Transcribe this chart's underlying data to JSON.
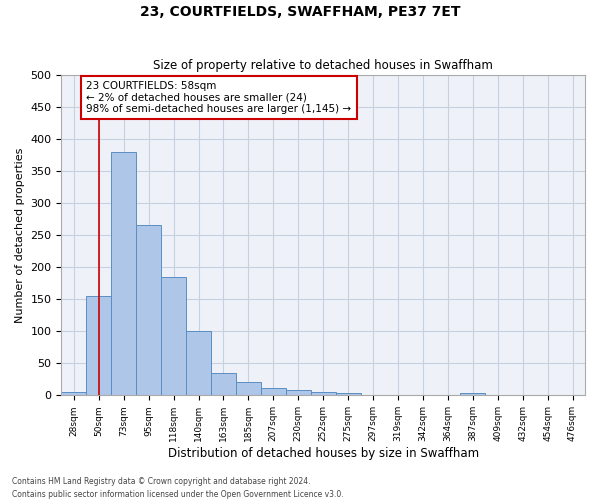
{
  "title": "23, COURTFIELDS, SWAFFHAM, PE37 7ET",
  "subtitle": "Size of property relative to detached houses in Swaffham",
  "xlabel": "Distribution of detached houses by size in Swaffham",
  "ylabel": "Number of detached properties",
  "bar_labels": [
    "28sqm",
    "50sqm",
    "73sqm",
    "95sqm",
    "118sqm",
    "140sqm",
    "163sqm",
    "185sqm",
    "207sqm",
    "230sqm",
    "252sqm",
    "275sqm",
    "297sqm",
    "319sqm",
    "342sqm",
    "364sqm",
    "387sqm",
    "409sqm",
    "432sqm",
    "454sqm",
    "476sqm"
  ],
  "bar_values": [
    5,
    155,
    380,
    265,
    185,
    101,
    35,
    21,
    12,
    8,
    5,
    3,
    1,
    0,
    0,
    0,
    3,
    0,
    0,
    0,
    0
  ],
  "bar_color": "#aec6e8",
  "bar_edge_color": "#5a8fc4",
  "annotation_text": "23 COURTFIELDS: 58sqm\n← 2% of detached houses are smaller (24)\n98% of semi-detached houses are larger (1,145) →",
  "annotation_box_color": "#ffffff",
  "annotation_box_edge": "#cc0000",
  "ref_line_color": "#cc0000",
  "ylim": [
    0,
    500
  ],
  "yticks": [
    0,
    50,
    100,
    150,
    200,
    250,
    300,
    350,
    400,
    450,
    500
  ],
  "grid_color": "#c8d0e0",
  "bg_color": "#eef2f8",
  "footnote1": "Contains HM Land Registry data © Crown copyright and database right 2024.",
  "footnote2": "Contains public sector information licensed under the Open Government Licence v3.0."
}
